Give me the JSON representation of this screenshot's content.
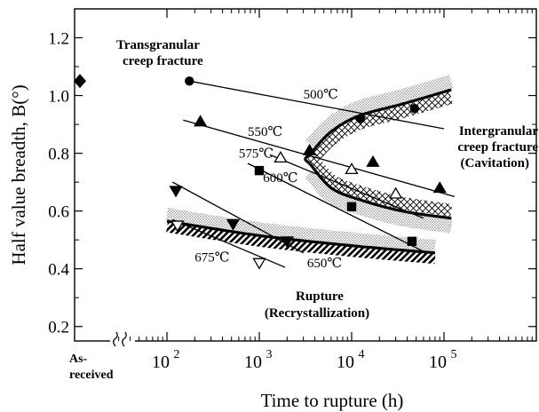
{
  "chart_data": {
    "type": "scatter",
    "xlabel": "Time to rupture (h)",
    "ylabel": "Half value breadth, B(°)",
    "x_scale": "log",
    "xlim": [
      10,
      1000000
    ],
    "ylim": [
      0.15,
      1.3
    ],
    "grid": false,
    "x_ticks": [
      {
        "value": 100,
        "label": "10",
        "exp": "2"
      },
      {
        "value": 1000,
        "label": "10",
        "exp": "3"
      },
      {
        "value": 10000,
        "label": "10",
        "exp": "4"
      },
      {
        "value": 100000,
        "label": "10",
        "exp": "5"
      }
    ],
    "y_ticks": [
      0.2,
      0.4,
      0.6,
      0.8,
      1.0,
      1.2
    ],
    "y_tick_labels": [
      "0.2",
      "0.4",
      "0.6",
      "0.8",
      "1.0",
      "1.2"
    ],
    "as_received": {
      "label_line1": "As-",
      "label_line2": "received",
      "y": 1.05,
      "marker": "diamond"
    },
    "series": [
      {
        "name": "500℃",
        "marker": "filled-circle",
        "points": [
          [
            175,
            1.05
          ],
          [
            12500,
            0.92
          ],
          [
            48000,
            0.955
          ]
        ],
        "fit": [
          [
            175,
            1.05
          ],
          [
            100000,
            0.885
          ]
        ]
      },
      {
        "name": "550℃",
        "marker": "filled-triangle",
        "points": [
          [
            230,
            0.91
          ],
          [
            3500,
            0.81
          ],
          [
            17000,
            0.77
          ],
          [
            90000,
            0.68
          ]
        ],
        "fit": [
          [
            150,
            0.915
          ],
          [
            130000,
            0.65
          ]
        ]
      },
      {
        "name": "575℃",
        "marker": "open-triangle",
        "points": [
          [
            1700,
            0.785
          ],
          [
            10000,
            0.745
          ],
          [
            30000,
            0.66
          ]
        ],
        "fit": [
          [
            1300,
            0.795
          ],
          [
            60000,
            0.575
          ]
        ]
      },
      {
        "name": "600℃",
        "marker": "filled-square",
        "points": [
          [
            1000,
            0.74
          ],
          [
            10000,
            0.615
          ],
          [
            45000,
            0.495
          ]
        ],
        "fit": [
          [
            750,
            0.765
          ],
          [
            60000,
            0.46
          ]
        ]
      },
      {
        "name": "650℃",
        "marker": "filled-inv-triangle",
        "points": [
          [
            125,
            0.67
          ],
          [
            520,
            0.555
          ],
          [
            2000,
            0.495
          ]
        ],
        "fit": [
          [
            115,
            0.7
          ],
          [
            3000,
            0.455
          ]
        ]
      },
      {
        "name": "675℃",
        "marker": "open-inv-triangle",
        "points": [
          [
            130,
            0.55
          ],
          [
            1000,
            0.42
          ]
        ],
        "fit": [
          [
            115,
            0.57
          ],
          [
            1900,
            0.405
          ]
        ]
      }
    ],
    "annotations": {
      "transgranular": [
        "Transgranular",
        "creep fracture"
      ],
      "intergranular": [
        "Intergranular",
        "creep fracture",
        "(Cavitation)"
      ],
      "rupture": [
        "Rupture",
        "(Recrystallization)"
      ]
    },
    "boundaries": {
      "cavitation_upper": [
        [
          3600,
          0.8
        ],
        [
          6000,
          0.875
        ],
        [
          12000,
          0.93
        ],
        [
          35000,
          0.97
        ],
        [
          120000,
          1.02
        ]
      ],
      "cavitation_lower": [
        [
          3600,
          0.76
        ],
        [
          6000,
          0.68
        ],
        [
          12000,
          0.64
        ],
        [
          35000,
          0.6
        ],
        [
          120000,
          0.575
        ]
      ],
      "recrystallization": [
        [
          100,
          0.565
        ],
        [
          1000,
          0.515
        ],
        [
          10000,
          0.48
        ],
        [
          80000,
          0.455
        ]
      ]
    }
  }
}
